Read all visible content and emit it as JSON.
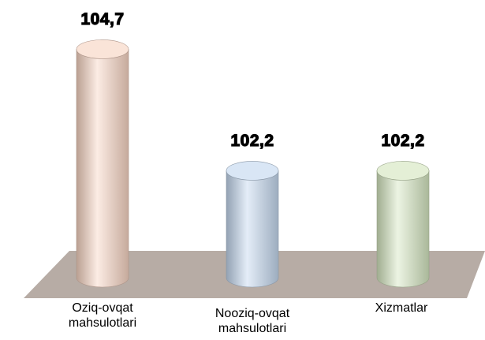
{
  "chart_data": {
    "type": "bar",
    "categories": [
      "Oziq-ovqat mahsulotlari",
      "Nooziq-ovqat mahsulotlari",
      "Xizmatlar"
    ],
    "values": [
      104.7,
      102.2,
      102.2
    ],
    "value_labels": [
      "104,7",
      "102,2",
      "102,2"
    ],
    "colors": [
      "#f8d5c3",
      "#c4d8ef",
      "#d5e6c0"
    ],
    "ylim": [
      100,
      105
    ]
  }
}
